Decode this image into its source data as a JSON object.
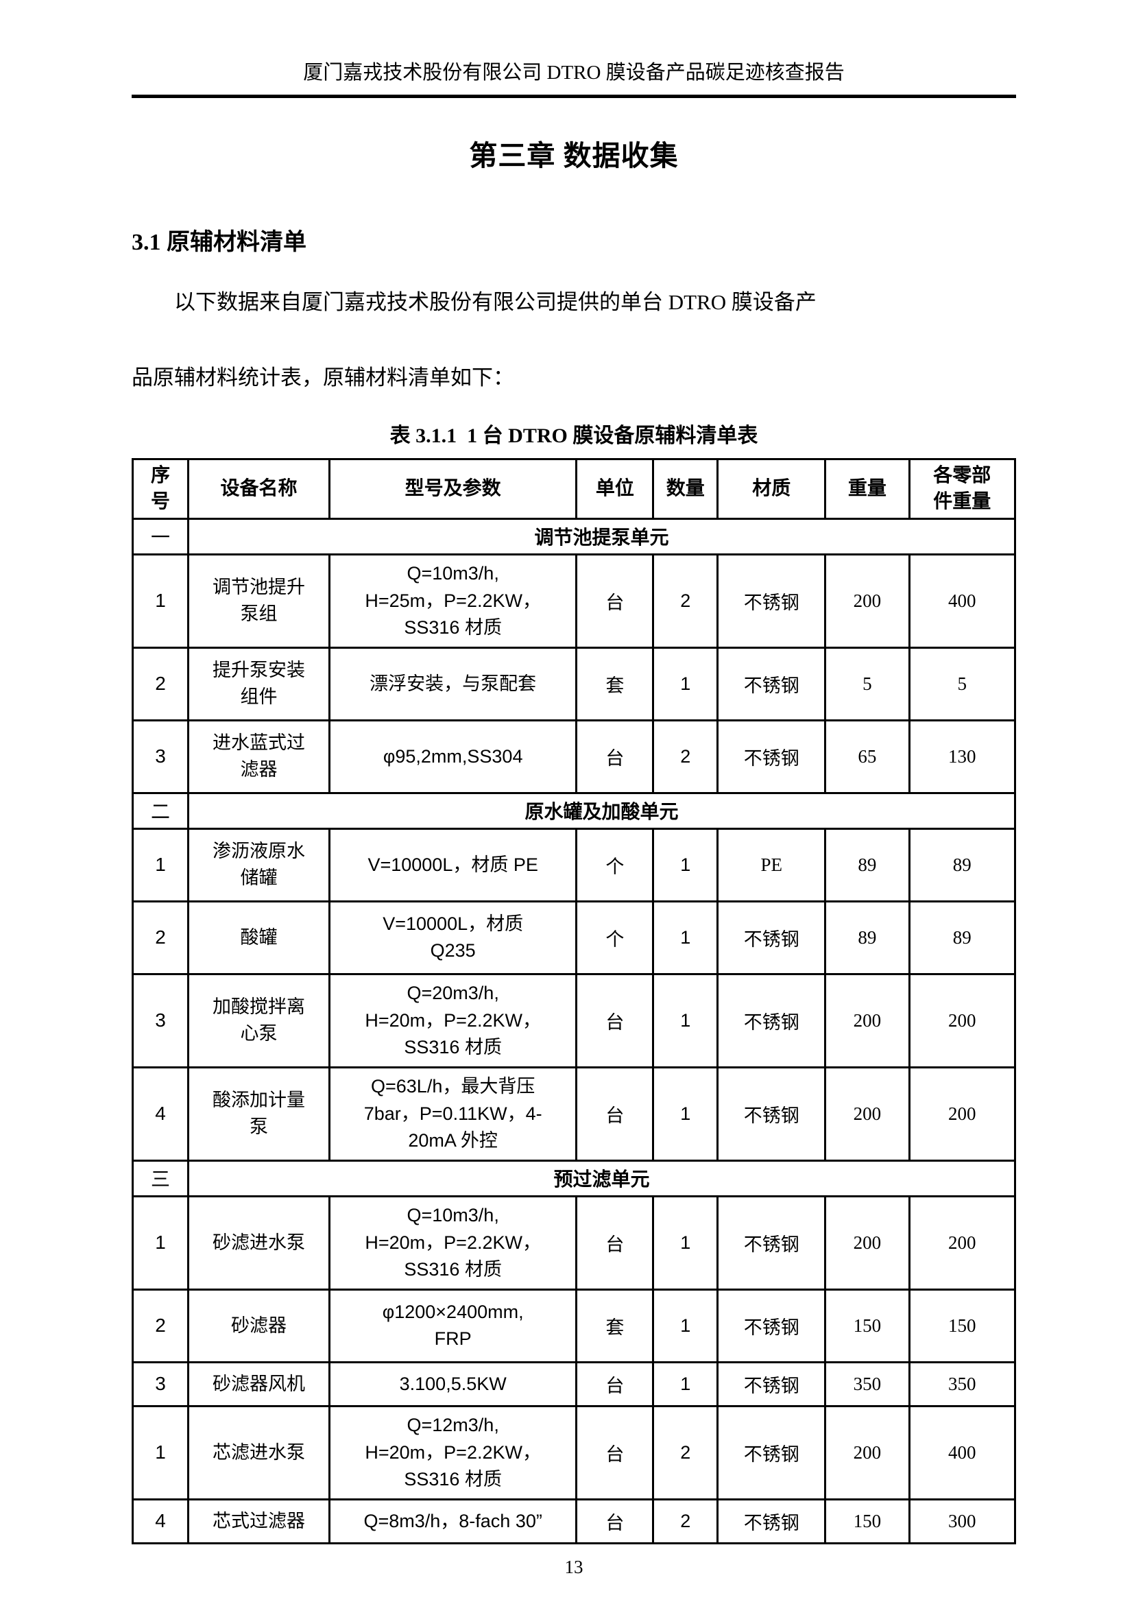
{
  "page": {
    "header": "厦门嘉戎技术股份有限公司 DTRO 膜设备产品碳足迹核查报告",
    "chapter_title": "第三章 数据收集",
    "section_heading": "3.1 原辅材料清单",
    "paragraph": "以下数据来自厦门嘉戎技术股份有限公司提供的单台 DTRO 膜设备产\n品原辅材料统计表，原辅材料清单如下：",
    "table_caption": "表 3.1.1  1 台 DTRO 膜设备原辅料清单表",
    "page_number": "13"
  },
  "colors": {
    "text": "#000000",
    "background": "#ffffff",
    "table_border": "#000000"
  },
  "table": {
    "columns": [
      "序\n号",
      "设备名称",
      "型号及参数",
      "单位",
      "数量",
      "材质",
      "重量",
      "各零部\n件重量"
    ],
    "rows": [
      {
        "type": "section",
        "no": "一",
        "title": "调节池提泵单元"
      },
      {
        "type": "item",
        "no": "1",
        "name": "调节池提升\n泵组",
        "spec": "Q=10m3/h,\nH=25m，P=2.2KW，\nSS316 材质",
        "unit": "台",
        "qty": "2",
        "material": "不锈钢",
        "weight": "200",
        "parts_weight": "400"
      },
      {
        "type": "item",
        "no": "2",
        "name": "提升泵安装\n组件",
        "spec": "漂浮安装，与泵配套",
        "unit": "套",
        "qty": "1",
        "material": "不锈钢",
        "weight": "5",
        "parts_weight": "5"
      },
      {
        "type": "item",
        "no": "3",
        "name": "进水蓝式过\n滤器",
        "spec": "φ95,2mm,SS304",
        "unit": "台",
        "qty": "2",
        "material": "不锈钢",
        "weight": "65",
        "parts_weight": "130"
      },
      {
        "type": "section",
        "no": "二",
        "title": "原水罐及加酸单元"
      },
      {
        "type": "item",
        "no": "1",
        "name": "渗沥液原水\n储罐",
        "spec": "V=10000L，材质 PE",
        "unit": "个",
        "qty": "1",
        "material": "PE",
        "weight": "89",
        "parts_weight": "89"
      },
      {
        "type": "item",
        "no": "2",
        "name": "酸罐",
        "spec": "V=10000L，材质\nQ235",
        "unit": "个",
        "qty": "1",
        "material": "不锈钢",
        "weight": "89",
        "parts_weight": "89"
      },
      {
        "type": "item",
        "no": "3",
        "name": "加酸搅拌离\n心泵",
        "spec": "Q=20m3/h,\nH=20m，P=2.2KW，\nSS316 材质",
        "unit": "台",
        "qty": "1",
        "material": "不锈钢",
        "weight": "200",
        "parts_weight": "200"
      },
      {
        "type": "item",
        "no": "4",
        "name": "酸添加计量\n泵",
        "spec": "Q=63L/h，最大背压\n7bar，P=0.11KW，4-\n20mA 外控",
        "unit": "台",
        "qty": "1",
        "material": "不锈钢",
        "weight": "200",
        "parts_weight": "200"
      },
      {
        "type": "section",
        "no": "三",
        "title": "预过滤单元"
      },
      {
        "type": "item",
        "no": "1",
        "name": "砂滤进水泵",
        "spec": "Q=10m3/h,\nH=20m，P=2.2KW，\nSS316 材质",
        "unit": "台",
        "qty": "1",
        "material": "不锈钢",
        "weight": "200",
        "parts_weight": "200"
      },
      {
        "type": "item",
        "no": "2",
        "name": "砂滤器",
        "spec": "φ1200×2400mm,\nFRP",
        "unit": "套",
        "qty": "1",
        "material": "不锈钢",
        "weight": "150",
        "parts_weight": "150"
      },
      {
        "type": "item",
        "no": "3",
        "name": "砂滤器风机",
        "spec": "3.100,5.5KW",
        "unit": "台",
        "qty": "1",
        "material": "不锈钢",
        "weight": "350",
        "parts_weight": "350"
      },
      {
        "type": "item",
        "no": "1",
        "name": "芯滤进水泵",
        "spec": "Q=12m3/h,\nH=20m，P=2.2KW，\nSS316 材质",
        "unit": "台",
        "qty": "2",
        "material": "不锈钢",
        "weight": "200",
        "parts_weight": "400"
      },
      {
        "type": "item",
        "no": "4",
        "name": "芯式过滤器",
        "spec": "Q=8m3/h，8-fach 30”",
        "unit": "台",
        "qty": "2",
        "material": "不锈钢",
        "weight": "150",
        "parts_weight": "300"
      }
    ]
  }
}
